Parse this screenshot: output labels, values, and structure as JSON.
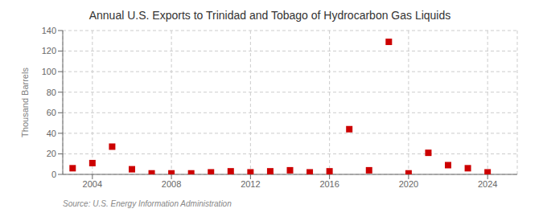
{
  "chart_data": {
    "type": "scatter",
    "title": "Annual U.S. Exports to Trinidad and Tobago of Hydrocarbon Gas Liquids",
    "ylabel": "Thousand Barrels",
    "source": "Source: U.S. Energy Information Administration",
    "x": [
      2003,
      2004,
      2005,
      2006,
      2007,
      2008,
      2009,
      2010,
      2011,
      2012,
      2013,
      2014,
      2015,
      2016,
      2017,
      2018,
      2019,
      2020,
      2021,
      2022,
      2023,
      2024
    ],
    "values": [
      6,
      11,
      27,
      5,
      1,
      1,
      1,
      2,
      3,
      2,
      3,
      4,
      2,
      3,
      44,
      4,
      129,
      1,
      21,
      9,
      6,
      2
    ],
    "color": "#cc0000",
    "marker": "square",
    "xlim": [
      2002.5,
      2025.5
    ],
    "ylim": [
      0,
      140
    ],
    "xticks": [
      2004,
      2008,
      2012,
      2016,
      2020,
      2024
    ],
    "yticks": [
      0,
      20,
      40,
      60,
      80,
      100,
      120,
      140
    ],
    "grid": true
  }
}
